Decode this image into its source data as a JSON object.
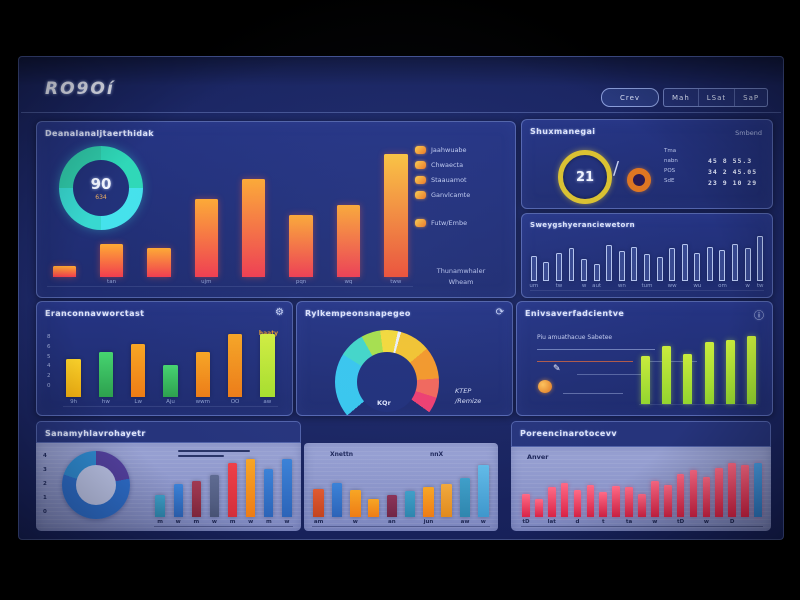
{
  "header": {
    "logo": "RO9Oí",
    "pill_button": "Crev",
    "nav_buttons": [
      "Mah",
      "LSat",
      "SaP"
    ]
  },
  "icons": {
    "gear": "⚙",
    "refresh": "⟳",
    "info": "ⓘ",
    "pen": "✎"
  },
  "panels": {
    "overview": {
      "title": "Deanalanaljtaerthidak",
      "donut": {
        "value": "90",
        "sub": "634"
      },
      "legend": [
        "Jaahwuabe",
        "Chwaecta",
        "Staauamot",
        "Ganvlcamte",
        "Futw/Embe"
      ],
      "footer_line1": "Thunamwhaler",
      "footer_line2": "Wheam"
    },
    "stats": {
      "title": "Shuxmanegai",
      "subtitle": "Smbend",
      "gauge_value": "21",
      "separator": "/",
      "labels": [
        "Tma",
        "nabn",
        "POS",
        "SdE"
      ],
      "rows": [
        "45 8 55.3",
        "34 2 45.05",
        "23 9 10 29"
      ]
    },
    "trend": {
      "title": "Sweygshyeranciewetorn"
    },
    "grouped": {
      "title": "Eranconnavworctast",
      "legend": "haaty",
      "yticks": [
        "8",
        "6",
        "5",
        "4",
        "2",
        "0"
      ]
    },
    "gauge": {
      "title": "Rylkempeonsnapegeo",
      "label_left": "KQr",
      "label_right1": "KTEP",
      "label_right2": "/Remize"
    },
    "tasks": {
      "title": "Enivsaverfadcientve",
      "subtitle": "Piu amuathacue Sabetee"
    },
    "distribution": {
      "title": "Sanamyhlavrohayetr",
      "yticks": [
        "4",
        "3",
        "2",
        "1",
        "0"
      ]
    },
    "comparison": {
      "label_left": "Xnettn",
      "label_right": "nnX"
    },
    "performance": {
      "title": "Poreencinarotocevv",
      "corner_label": "Anver"
    }
  },
  "colors": {
    "flame": [
      "#ffaa33",
      "#f23d4e"
    ],
    "flame2": [
      "#ffc53d",
      "#f25032"
    ],
    "yellow": [
      "#f8cf2a",
      "#efae12"
    ],
    "green": [
      "#46d470",
      "#2da04e"
    ],
    "orange": [
      "#f8a623",
      "#ee7c16"
    ],
    "lime": [
      "#d3ef3e",
      "#a8df2c"
    ],
    "limebar": [
      "#c9ec3c",
      "#93d52f"
    ],
    "blue": [
      "#3b82d8",
      "#2c64b8"
    ],
    "teal": [
      "#3f9fc9",
      "#2f86ae"
    ],
    "darkred": [
      "#a03a52",
      "#84283e"
    ],
    "slate": [
      "#5f6b92",
      "#4a5578"
    ],
    "red": [
      "#ef4048",
      "#d32f3c"
    ],
    "rust": [
      "#e05a30",
      "#c4441f"
    ],
    "maroon": [
      "#8c3358",
      "#712646"
    ],
    "amber": [
      "#f2a93c",
      "#e08a1e"
    ],
    "sky": [
      "#62bbe8",
      "#3f97cc"
    ],
    "crimson": [
      "#ff6a86",
      "#d92347"
    ],
    "lastblue": [
      "#4aa0e8",
      "#2f7cc8"
    ]
  },
  "chart_data": [
    {
      "id": "overview-bars",
      "type": "bar",
      "max": 100,
      "title": "Deanalanaljtaerthidak",
      "bars": [
        {
          "v": 8,
          "c": "flame",
          "l": ""
        },
        {
          "v": 25,
          "c": "flame",
          "l": "tan"
        },
        {
          "v": 22,
          "c": "flame",
          "l": ""
        },
        {
          "v": 58,
          "c": "flame",
          "l": "ujm"
        },
        {
          "v": 73,
          "c": "flame",
          "l": ""
        },
        {
          "v": 46,
          "c": "flame",
          "l": "pqn"
        },
        {
          "v": 54,
          "c": "flame",
          "l": "wq"
        },
        {
          "v": 92,
          "c": "flame2",
          "l": "tww"
        }
      ]
    },
    {
      "id": "overview-donut",
      "type": "donut",
      "value": "90",
      "sub": "634",
      "segments": [
        {
          "color": "#2fd8b8",
          "pct": 25
        },
        {
          "color": "#45e2ec",
          "pct": 25
        },
        {
          "color": "#38d8d0",
          "pct": 25
        },
        {
          "color": "#2fc8a8",
          "pct": 25
        }
      ],
      "hole": "#223179"
    },
    {
      "id": "trend-bars",
      "type": "bar",
      "max": 70,
      "bars": [
        {
          "v": 30,
          "c": "outline",
          "l": "um"
        },
        {
          "v": 22,
          "c": "outline",
          "l": ""
        },
        {
          "v": 34,
          "c": "outline",
          "l": "tw"
        },
        {
          "v": 40,
          "c": "outline",
          "l": ""
        },
        {
          "v": 26,
          "c": "outline",
          "l": "w"
        },
        {
          "v": 20,
          "c": "outline",
          "l": "aut"
        },
        {
          "v": 44,
          "c": "outline",
          "l": ""
        },
        {
          "v": 36,
          "c": "outline",
          "l": "wn"
        },
        {
          "v": 42,
          "c": "outline",
          "l": ""
        },
        {
          "v": 33,
          "c": "outline",
          "l": "tum"
        },
        {
          "v": 28,
          "c": "outline",
          "l": ""
        },
        {
          "v": 40,
          "c": "outline",
          "l": "ww"
        },
        {
          "v": 46,
          "c": "outline",
          "l": ""
        },
        {
          "v": 34,
          "c": "outline",
          "l": "wu"
        },
        {
          "v": 42,
          "c": "outline",
          "l": ""
        },
        {
          "v": 38,
          "c": "outline",
          "l": "om"
        },
        {
          "v": 45,
          "c": "outline",
          "l": ""
        },
        {
          "v": 40,
          "c": "outline",
          "l": "w"
        },
        {
          "v": 64,
          "c": "outline",
          "l": "tw"
        }
      ]
    },
    {
      "id": "grouped-bars",
      "type": "bar",
      "max": 8,
      "yticks": [
        "8",
        "6",
        "5",
        "4",
        "2",
        "0"
      ],
      "bars": [
        {
          "v": 4.2,
          "c": "yellow",
          "l": "9h"
        },
        {
          "v": 5.0,
          "c": "green",
          "l": "hw"
        },
        {
          "v": 5.9,
          "c": "orange",
          "l": "Lw"
        },
        {
          "v": 3.6,
          "c": "green",
          "l": "Aju"
        },
        {
          "v": 5.0,
          "c": "orange",
          "l": "wwm"
        },
        {
          "v": 7.8,
          "c": "orange",
          "l": "OO"
        },
        {
          "v": 7.5,
          "c": "lime",
          "l": "aw"
        }
      ]
    },
    {
      "id": "gauge-arc",
      "type": "donut",
      "from": "230deg",
      "segments": [
        {
          "color": "#39c8ee",
          "pct": 20
        },
        {
          "color": "#43d8c8",
          "pct": 8
        },
        {
          "color": "#a9e24a",
          "pct": 6
        },
        {
          "color": "#f7dc38",
          "pct": 5.5
        },
        {
          "color": "#eef2f8",
          "pct": 1
        },
        {
          "color": "#f6c62e",
          "pct": 9.5
        },
        {
          "color": "#f79a28",
          "pct": 10
        },
        {
          "color": "#f4685a",
          "pct": 6
        },
        {
          "color": "#ef3f70",
          "pct": 5
        },
        {
          "color": "transparent",
          "pct": 29
        }
      ],
      "hole": "#21307a"
    },
    {
      "id": "tasks-bars",
      "type": "bar",
      "max": 60,
      "labels": false,
      "bars": [
        {
          "v": 40,
          "c": "limebar"
        },
        {
          "v": 48,
          "c": "limebar"
        },
        {
          "v": 42,
          "c": "limebar"
        },
        {
          "v": 52,
          "c": "limebar"
        },
        {
          "v": 53,
          "c": "limebar"
        },
        {
          "v": 57,
          "c": "limebar"
        }
      ]
    },
    {
      "id": "distribution-donut",
      "type": "donut",
      "segments": [
        {
          "color": "#53409e",
          "pct": 22
        },
        {
          "color": "#2d6cc8",
          "pct": 58
        },
        {
          "color": "#2f8ad0",
          "pct": 20
        }
      ],
      "hole": "#b9c1e4"
    },
    {
      "id": "distribution-bars",
      "type": "bar",
      "max": 60,
      "bars": [
        {
          "v": 20,
          "c": "teal",
          "l": "m"
        },
        {
          "v": 30,
          "c": "blue",
          "l": "w"
        },
        {
          "v": 32,
          "c": "darkred",
          "l": "m"
        },
        {
          "v": 38,
          "c": "slate",
          "l": "w"
        },
        {
          "v": 48,
          "c": "red",
          "l": "m"
        },
        {
          "v": 55,
          "c": "orange",
          "l": "w"
        },
        {
          "v": 43,
          "c": "blue",
          "l": "m"
        },
        {
          "v": 53,
          "c": "blue",
          "l": "w"
        }
      ]
    },
    {
      "id": "comparison-bars",
      "type": "bar",
      "max": 60,
      "bars": [
        {
          "v": 28,
          "c": "rust",
          "l": "am"
        },
        {
          "v": 33,
          "c": "blue",
          "l": ""
        },
        {
          "v": 27,
          "c": "orange",
          "l": "w"
        },
        {
          "v": 18,
          "c": "orange",
          "l": ""
        },
        {
          "v": 22,
          "c": "maroon",
          "l": "an"
        },
        {
          "v": 26,
          "c": "teal",
          "l": ""
        },
        {
          "v": 30,
          "c": "orange",
          "l": "jun"
        },
        {
          "v": 32,
          "c": "amber",
          "l": ""
        },
        {
          "v": 38,
          "c": "teal",
          "l": "aw"
        },
        {
          "v": 52,
          "c": "sky",
          "l": "w"
        }
      ]
    },
    {
      "id": "performance-bars",
      "type": "bar",
      "max": 70,
      "bars": [
        {
          "v": 26,
          "c": "crimson",
          "l": "tD"
        },
        {
          "v": 20,
          "c": "crimson",
          "l": ""
        },
        {
          "v": 33,
          "c": "crimson",
          "l": "lat"
        },
        {
          "v": 38,
          "c": "crimson",
          "l": ""
        },
        {
          "v": 30,
          "c": "crimson",
          "l": "d"
        },
        {
          "v": 36,
          "c": "crimson",
          "l": ""
        },
        {
          "v": 28,
          "c": "crimson",
          "l": "t"
        },
        {
          "v": 35,
          "c": "crimson",
          "l": ""
        },
        {
          "v": 33,
          "c": "crimson",
          "l": "ta"
        },
        {
          "v": 26,
          "c": "crimson",
          "l": ""
        },
        {
          "v": 40,
          "c": "crimson",
          "l": "w"
        },
        {
          "v": 36,
          "c": "crimson",
          "l": ""
        },
        {
          "v": 48,
          "c": "crimson",
          "l": "tD"
        },
        {
          "v": 52,
          "c": "crimson",
          "l": ""
        },
        {
          "v": 45,
          "c": "crimson",
          "l": "w"
        },
        {
          "v": 55,
          "c": "crimson",
          "l": ""
        },
        {
          "v": 60,
          "c": "crimson",
          "l": "D"
        },
        {
          "v": 58,
          "c": "crimson",
          "l": ""
        },
        {
          "v": 62,
          "c": "lastblue",
          "l": ""
        }
      ]
    }
  ]
}
